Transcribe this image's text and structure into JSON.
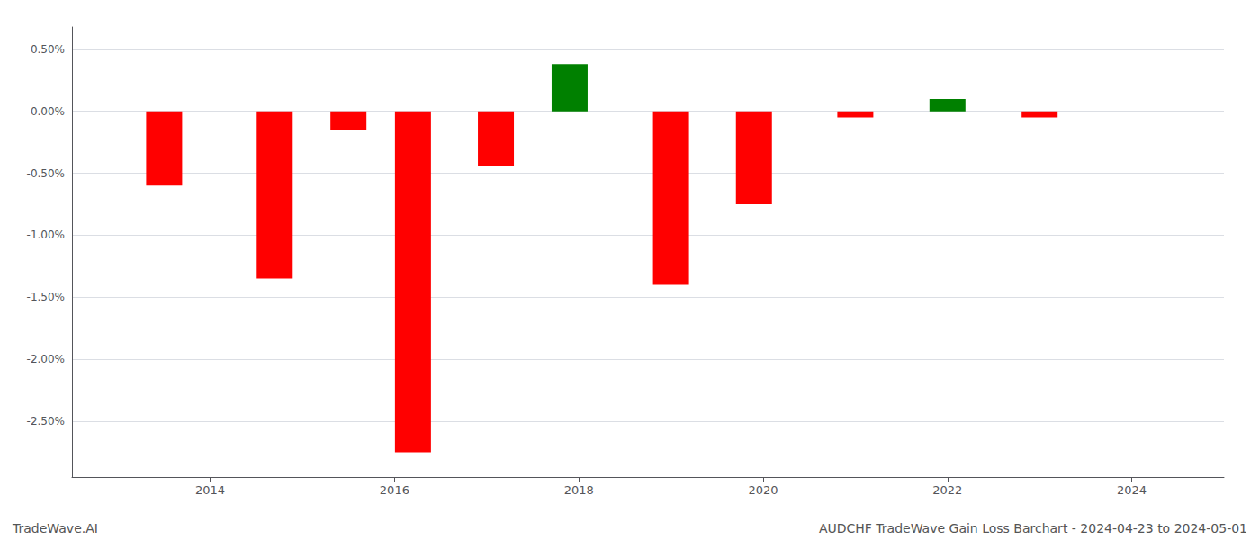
{
  "chart_data": {
    "type": "bar",
    "x": [
      2013.5,
      2014.7,
      2015.5,
      2016.2,
      2017.1,
      2017.9,
      2019.0,
      2019.9,
      2021.0,
      2022.0,
      2023.0
    ],
    "values": [
      -0.6,
      -1.35,
      -0.15,
      -2.75,
      -0.44,
      0.38,
      -1.4,
      -0.75,
      -0.05,
      0.1,
      -0.05
    ],
    "colors": [
      "#ff0000",
      "#ff0000",
      "#ff0000",
      "#ff0000",
      "#ff0000",
      "#008000",
      "#ff0000",
      "#ff0000",
      "#ff0000",
      "#008000",
      "#ff0000"
    ],
    "xlim": [
      2012.5,
      2025.0
    ],
    "xticks": [
      2014,
      2016,
      2018,
      2020,
      2022,
      2024
    ],
    "ylim": [
      -2.95,
      0.68
    ],
    "yticks": [
      {
        "value": 0.5,
        "label": "0.50%"
      },
      {
        "value": 0.0,
        "label": "0.00%"
      },
      {
        "value": -0.5,
        "label": "-0.50%"
      },
      {
        "value": -1.0,
        "label": "-1.00%"
      },
      {
        "value": -1.5,
        "label": "-1.50%"
      },
      {
        "value": -2.0,
        "label": "-2.00%"
      },
      {
        "value": -2.5,
        "label": "-2.50%"
      }
    ],
    "grid": true,
    "annotations": [
      "TradeWave.AI",
      "AUDCHF TradeWave Gain Loss Barchart - 2024-04-23 to 2024-05-01"
    ]
  }
}
